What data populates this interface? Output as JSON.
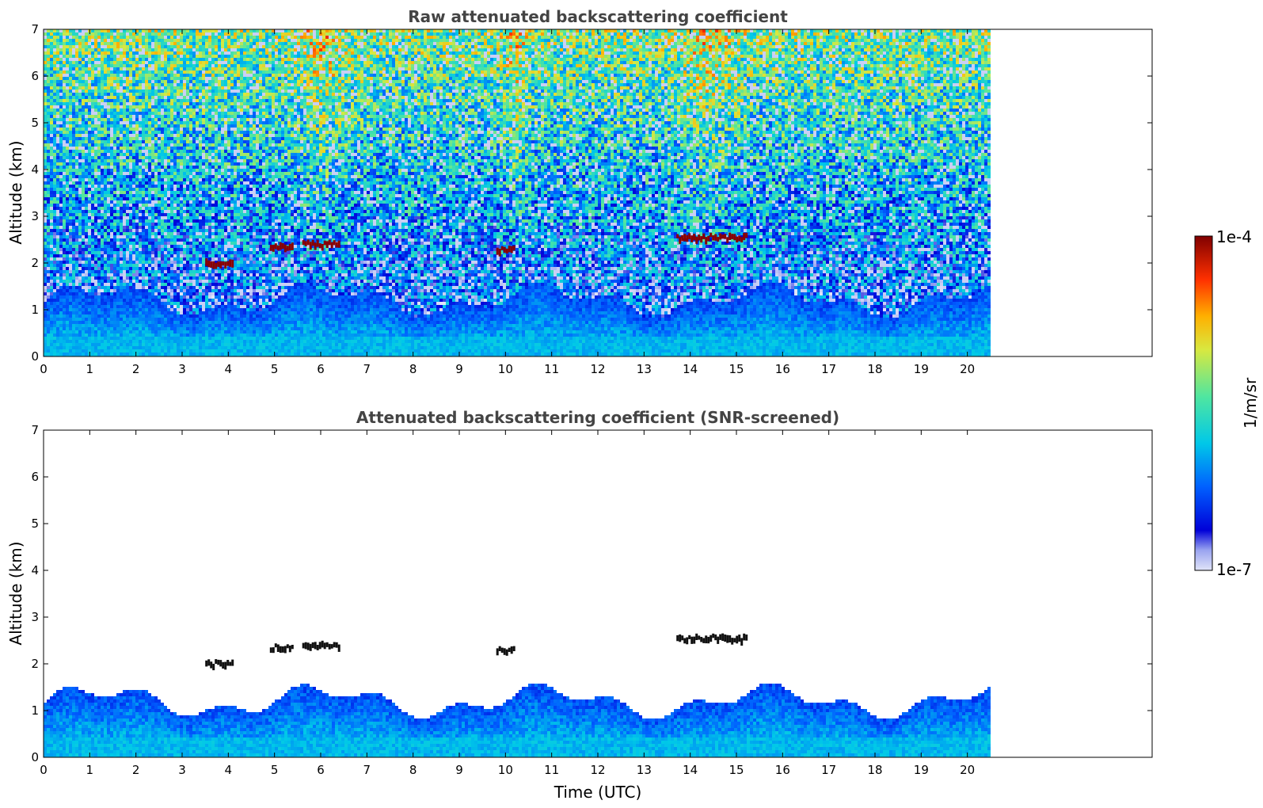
{
  "chart_data": [
    {
      "type": "heatmap",
      "title": "Raw attenuated backscattering coefficient",
      "ylabel": "Altitude (km)",
      "xlabel": "",
      "xlim": [
        0,
        24
      ],
      "ylim": [
        0,
        7
      ],
      "x_ticks": [
        "0",
        "1",
        "2",
        "3",
        "4",
        "5",
        "6",
        "7",
        "8",
        "9",
        "10",
        "11",
        "12",
        "13",
        "14",
        "15",
        "16",
        "17",
        "18",
        "19",
        "20"
      ],
      "y_ticks": [
        "0",
        "1",
        "2",
        "3",
        "4",
        "5",
        "6",
        "7"
      ],
      "data_extent_time": [
        0,
        20.45
      ],
      "features": [
        {
          "kind": "boundary_layer",
          "top_km": 1.2
        },
        {
          "kind": "aerosol_layer",
          "t_start": 3.5,
          "t_end": 4.1,
          "alt_km": 2.0
        },
        {
          "kind": "aerosol_layer",
          "t_start": 4.9,
          "t_end": 5.4,
          "alt_km": 2.35
        },
        {
          "kind": "aerosol_layer",
          "t_start": 5.6,
          "t_end": 6.4,
          "alt_km": 2.4
        },
        {
          "kind": "aerosol_layer",
          "t_start": 9.8,
          "t_end": 10.2,
          "alt_km": 2.3
        },
        {
          "kind": "aerosol_layer",
          "t_start": 13.7,
          "t_end": 15.2,
          "alt_km": 2.55
        }
      ]
    },
    {
      "type": "heatmap",
      "title": "Attenuated backscattering coefficient (SNR-screened)",
      "ylabel": "Altitude (km)",
      "xlabel": "Time (UTC)",
      "xlim": [
        0,
        24
      ],
      "ylim": [
        0,
        7
      ],
      "x_ticks": [
        "0",
        "1",
        "2",
        "3",
        "4",
        "5",
        "6",
        "7",
        "8",
        "9",
        "10",
        "11",
        "12",
        "13",
        "14",
        "15",
        "16",
        "17",
        "18",
        "19",
        "20"
      ],
      "y_ticks": [
        "0",
        "1",
        "2",
        "3",
        "4",
        "5",
        "6",
        "7"
      ],
      "data_extent_time": [
        0,
        20.45
      ]
    }
  ],
  "colorbar": {
    "label": "1/m/sr",
    "max_label": "1e-4",
    "min_label": "1e-7",
    "colors": [
      "#e0e4f8",
      "#0000d8",
      "#0060ff",
      "#00c8e8",
      "#50e6a0",
      "#d8e840",
      "#ffb000",
      "#ff3000",
      "#800000"
    ]
  }
}
